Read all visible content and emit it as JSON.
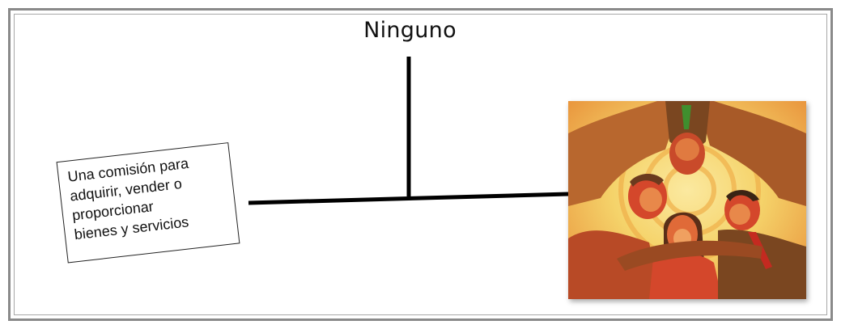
{
  "diagram": {
    "title": "Ninguno",
    "note": {
      "lines": [
        "Una comisión para",
        "adquirir, vender o",
        "proporcionar",
        "bienes y servicios"
      ]
    },
    "illustration": {
      "description_icon": "group-of-people-clipart-icon",
      "colors": {
        "background_light": "#f5d36a",
        "background_orange": "#e8913a",
        "skin_red": "#d4472b",
        "dark_brown": "#6b3a1e",
        "accent_green": "#3f8f2e"
      }
    }
  },
  "colors": {
    "frame_border": "#8a8a8a",
    "line": "#000000",
    "text": "#111111"
  }
}
